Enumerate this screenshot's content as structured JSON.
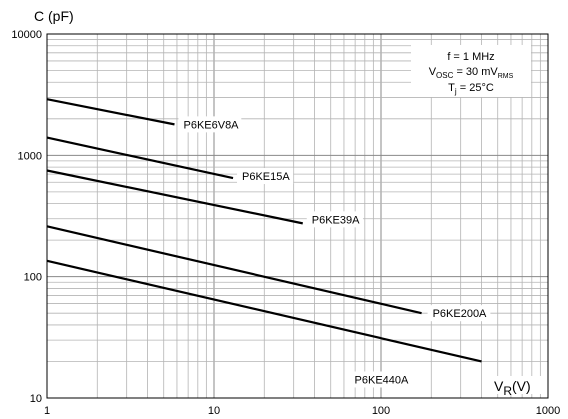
{
  "chart_data": {
    "type": "line",
    "ylabel": "C (pF)",
    "xlabel": "V_R (V)",
    "x_scale": "log",
    "y_scale": "log",
    "xlim": [
      1,
      1000
    ],
    "ylim": [
      10,
      10000
    ],
    "grid": true,
    "x_ticks": [
      "1",
      "10",
      "100",
      "1000"
    ],
    "y_ticks": [
      "10",
      "100",
      "1000",
      "10000"
    ],
    "conditions": [
      {
        "text": "f = 1 MHz"
      },
      {
        "main": "V",
        "sub": "OSC",
        "rest": " = 30 mV",
        "sub2": "RMS"
      },
      {
        "main": "T",
        "sub": "j",
        "rest": " = 25°C"
      }
    ],
    "series": [
      {
        "name": "P6KE6V8A",
        "x": [
          1,
          5.8
        ],
        "y": [
          2900,
          1800
        ]
      },
      {
        "name": "P6KE15A",
        "x": [
          1,
          13
        ],
        "y": [
          1400,
          650
        ]
      },
      {
        "name": "P6KE39A",
        "x": [
          1,
          34
        ],
        "y": [
          750,
          275
        ]
      },
      {
        "name": "P6KE200A",
        "x": [
          1,
          175
        ],
        "y": [
          260,
          50
        ]
      },
      {
        "name": "P6KE440A",
        "x": [
          1,
          400
        ],
        "y": [
          135,
          20
        ]
      }
    ]
  }
}
